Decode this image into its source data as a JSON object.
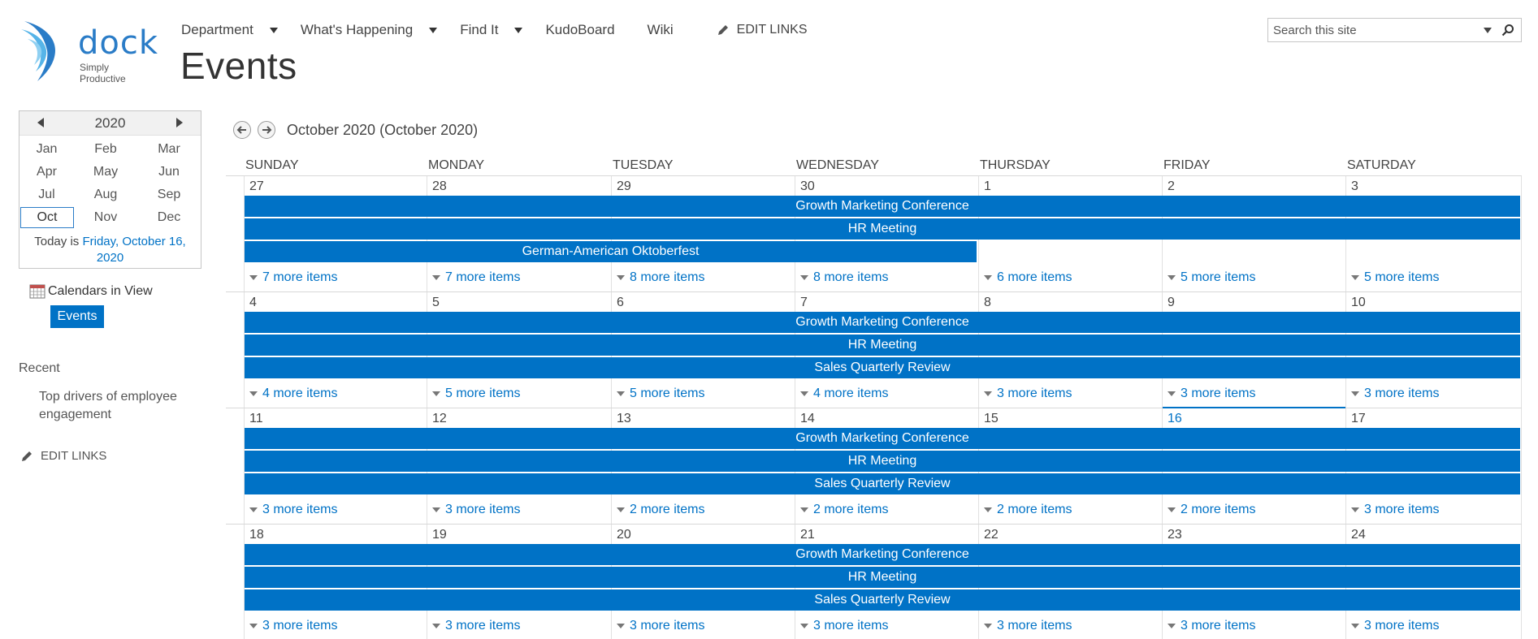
{
  "brand": {
    "name": "dock",
    "tagline": "Simply Productive",
    "accent": "#0072c6"
  },
  "topnav": {
    "items": [
      {
        "label": "Department",
        "dropdown": true
      },
      {
        "label": "What's Happening",
        "dropdown": true
      },
      {
        "label": "Find It",
        "dropdown": true
      },
      {
        "label": "KudoBoard",
        "dropdown": false
      },
      {
        "label": "Wiki",
        "dropdown": false
      }
    ],
    "edit_links": "EDIT LINKS"
  },
  "page": {
    "title": "Events"
  },
  "search": {
    "placeholder": "Search this site"
  },
  "mini_calendar": {
    "year": "2020",
    "months": [
      "Jan",
      "Feb",
      "Mar",
      "Apr",
      "May",
      "Jun",
      "Jul",
      "Aug",
      "Sep",
      "Oct",
      "Nov",
      "Dec"
    ],
    "selected_month": "Oct",
    "today_prefix": "Today is",
    "today_date": "Friday, October 16, 2020"
  },
  "left_nav": {
    "calendars_in_view": "Calendars in View",
    "calendar_chip": "Events",
    "recent_label": "Recent",
    "recent_item": "Top drivers of employee engagement",
    "edit_links": "EDIT LINKS"
  },
  "calendar": {
    "title": "October 2020 (October 2020)",
    "days_of_week": [
      "SUNDAY",
      "MONDAY",
      "TUESDAY",
      "WEDNESDAY",
      "THURSDAY",
      "FRIDAY",
      "SATURDAY"
    ],
    "today": "16",
    "weeks": [
      {
        "days": [
          "27",
          "28",
          "29",
          "30",
          "1",
          "2",
          "3"
        ],
        "events": [
          {
            "label": "Growth Marketing Conference",
            "start": 0,
            "span": 7
          },
          {
            "label": "HR Meeting",
            "start": 0,
            "span": 7
          },
          {
            "label": "German-American Oktoberfest",
            "start": 0,
            "span": 4
          }
        ],
        "more": [
          "7 more items",
          "7 more items",
          "8 more items",
          "8 more items",
          "6 more items",
          "5 more items",
          "5 more items"
        ]
      },
      {
        "days": [
          "4",
          "5",
          "6",
          "7",
          "8",
          "9",
          "10"
        ],
        "events": [
          {
            "label": "Growth Marketing Conference",
            "start": 0,
            "span": 7
          },
          {
            "label": "HR Meeting",
            "start": 0,
            "span": 7
          },
          {
            "label": "Sales Quarterly Review",
            "start": 0,
            "span": 7
          }
        ],
        "more": [
          "4 more items",
          "5 more items",
          "5 more items",
          "4 more items",
          "3 more items",
          "3 more items",
          "3 more items"
        ]
      },
      {
        "days": [
          "11",
          "12",
          "13",
          "14",
          "15",
          "16",
          "17"
        ],
        "events": [
          {
            "label": "Growth Marketing Conference",
            "start": 0,
            "span": 7
          },
          {
            "label": "HR Meeting",
            "start": 0,
            "span": 7
          },
          {
            "label": "Sales Quarterly Review",
            "start": 0,
            "span": 7
          }
        ],
        "more": [
          "3 more items",
          "3 more items",
          "2 more items",
          "2 more items",
          "2 more items",
          "2 more items",
          "3 more items"
        ]
      },
      {
        "days": [
          "18",
          "19",
          "20",
          "21",
          "22",
          "23",
          "24"
        ],
        "events": [
          {
            "label": "Growth Marketing Conference",
            "start": 0,
            "span": 7
          },
          {
            "label": "HR Meeting",
            "start": 0,
            "span": 7
          },
          {
            "label": "Sales Quarterly Review",
            "start": 0,
            "span": 7
          }
        ],
        "more": [
          "3 more items",
          "3 more items",
          "3 more items",
          "3 more items",
          "3 more items",
          "3 more items",
          "3 more items"
        ]
      }
    ]
  }
}
